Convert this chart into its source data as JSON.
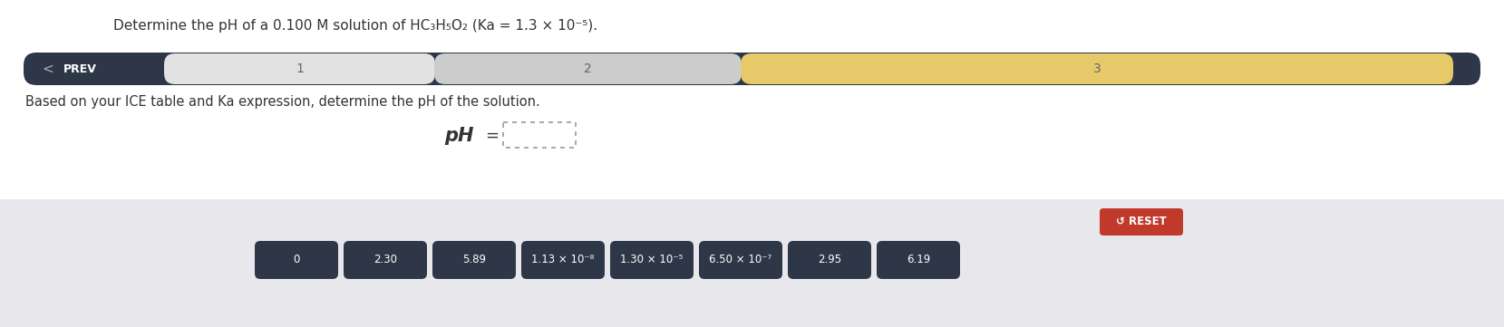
{
  "title": "Determine the pH of a 0.100 M solution of HC₃H₅O₂ (Ka = 1.3 × 10⁻⁵).",
  "nav_bar_bg": "#2d3748",
  "nav_section1_color": "#e2e2e2",
  "nav_section2_color": "#cccccc",
  "nav_section3_color": "#e8c96a",
  "instruction_text": "Based on your ICE table and Ka expression, determine the pH of the solution.",
  "reset_label": "↺ RESET",
  "reset_btn_color": "#c0392b",
  "answer_buttons": [
    "0",
    "2.30",
    "5.89",
    "1.13 × 10⁻⁸",
    "1.30 × 10⁻⁵",
    "6.50 × 10⁻⁷",
    "2.95",
    "6.19"
  ],
  "answer_btn_color": "#2d3748",
  "bg_color": "#ffffff",
  "bottom_panel_color": "#e8e8ec"
}
